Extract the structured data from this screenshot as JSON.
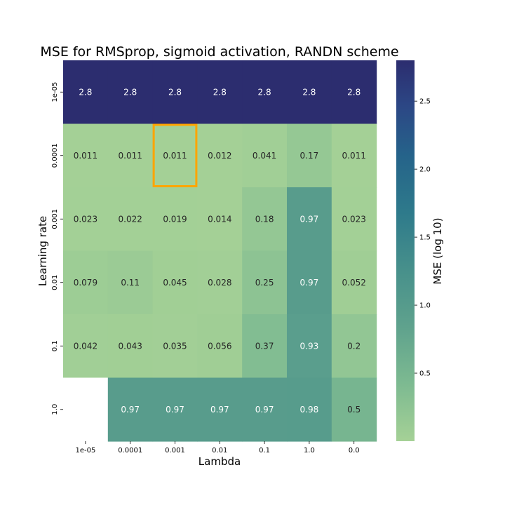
{
  "chart_data": {
    "type": "heatmap",
    "title": "MSE for RMSprop, sigmoid activation, RANDN scheme",
    "xlabel": "Lambda",
    "ylabel": "Learning rate",
    "x_categories": [
      "1e-05",
      "0.0001",
      "0.001",
      "0.01",
      "0.1",
      "1.0",
      "0.0"
    ],
    "y_categories": [
      "1e-05",
      "0.0001",
      "0.001",
      "0.01",
      "0.1",
      "1.0"
    ],
    "values": [
      [
        2.8,
        2.8,
        2.8,
        2.8,
        2.8,
        2.8,
        2.8
      ],
      [
        0.011,
        0.011,
        0.011,
        0.012,
        0.041,
        0.17,
        0.011
      ],
      [
        0.023,
        0.022,
        0.019,
        0.014,
        0.18,
        0.97,
        0.023
      ],
      [
        0.079,
        0.11,
        0.045,
        0.028,
        0.25,
        0.97,
        0.052
      ],
      [
        0.042,
        0.043,
        0.035,
        0.056,
        0.37,
        0.93,
        0.2
      ],
      [
        null,
        0.97,
        0.97,
        0.97,
        0.97,
        0.98,
        0.5
      ]
    ],
    "highlight": {
      "row": "0.0001",
      "column": "0.001",
      "color": "#ffa500"
    },
    "colorbar": {
      "label": "MSE (log 10)",
      "range": [
        0.0,
        2.8
      ],
      "ticks": [
        "0.5",
        "1.0",
        "1.5",
        "2.0",
        "2.5"
      ],
      "colormap": "crest"
    },
    "missing_cell_color": "#ffffff"
  }
}
